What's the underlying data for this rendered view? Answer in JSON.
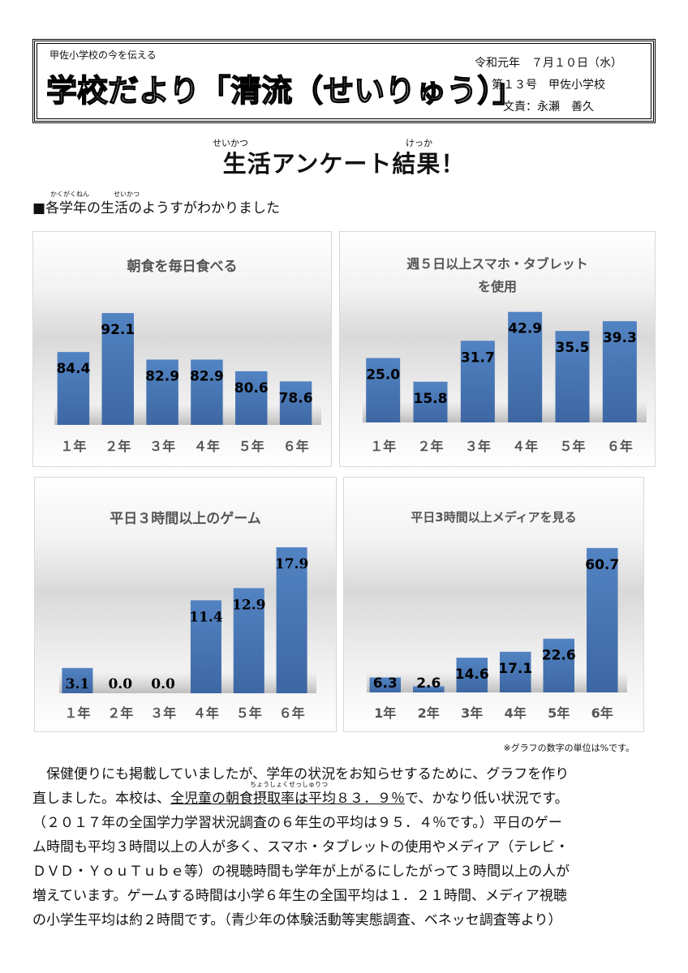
{
  "header": {
    "tagline": "甲佐小学校の今を伝える",
    "title": "学校だより「清流（せいりゅう）」",
    "date": "令和元年　７月１０日（水）",
    "issue": "第１３号　甲佐小学校",
    "author": "文責：永瀬　善久"
  },
  "main_title": {
    "text": "生活アンケート結果！",
    "ruby_seikatsu": "せいかつ",
    "ruby_kekka": "けっか"
  },
  "subhead": {
    "text": "■各学年の生活のようすがわかりました",
    "ruby_kakugakunen": "かくがくねん",
    "ruby_seikatsu": "せいかつ"
  },
  "chart_data": [
    {
      "type": "bar",
      "title": "朝食を毎日食べる",
      "categories": [
        "１年",
        "２年",
        "３年",
        "４年",
        "５年",
        "６年"
      ],
      "values": [
        84.4,
        92.1,
        82.9,
        82.9,
        80.6,
        78.6
      ],
      "labels": [
        "84.4",
        "92.1",
        "82.9",
        "82.9",
        "80.6",
        "78.6"
      ],
      "ylim": [
        70,
        95
      ],
      "bar_color": "#4a76b4",
      "grid": false
    },
    {
      "type": "bar",
      "title": "週５日以上スマホ・タブレット",
      "title_line2": "を使用",
      "categories": [
        "１年",
        "２年",
        "３年",
        "４年",
        "５年",
        "６年"
      ],
      "values": [
        25.0,
        15.8,
        31.7,
        42.9,
        35.5,
        39.3
      ],
      "labels": [
        "25.0",
        "15.8",
        "31.7",
        "42.9",
        "35.5",
        "39.3"
      ],
      "ylim": [
        0,
        45
      ],
      "bar_color": "#4a76b4",
      "grid": false
    },
    {
      "type": "bar",
      "title": "平日３時間以上のゲーム",
      "categories": [
        "１年",
        "２年",
        "３年",
        "４年",
        "５年",
        "６年"
      ],
      "values": [
        3.1,
        0.0,
        0.0,
        11.4,
        12.9,
        17.9
      ],
      "labels": [
        "3.1",
        "0.0",
        "0.0",
        "11.4",
        "12.9",
        "17.9"
      ],
      "ylim": [
        0,
        18
      ],
      "bar_color": "#4a76b4",
      "grid": false
    },
    {
      "type": "bar",
      "title": "平日3時間以上メディアを見る",
      "categories": [
        "1年",
        "2年",
        "3年",
        "4年",
        "5年",
        "6年"
      ],
      "values": [
        6.3,
        2.6,
        14.6,
        17.1,
        22.6,
        60.7
      ],
      "labels": [
        "6.3",
        "2.6",
        "14.6",
        "17.1",
        "22.6",
        "60.7"
      ],
      "ylim": [
        0,
        61
      ],
      "bar_color": "#4a76b4",
      "grid": false
    }
  ],
  "note": "※グラフの数字の単位は%です。",
  "body": {
    "line1": "　保健便りにも掲載していましたが、学年の状況をお知らせするために、グラフを作り",
    "line2_pre": "直しました。本校は、",
    "line2_ul": "全児童の朝食摂取率は平均８３．９％",
    "line2_post": "で、かなり低い状況です。",
    "line2_ruby": "ちょうしょくせっしゅりつ",
    "line3": "（２０１７年の全国学力学習状況調査の６年生の平均は９５．４％です。）平日のゲー",
    "line4": "ム時間も平均３時間以上の人が多く、スマホ・タブレットの使用やメディア（テレビ・",
    "line5": "ＤＶＤ・ＹｏｕＴｕｂｅ等）の視聴時間も学年が上がるにしたがって３時間以上の人が",
    "line6": "増えています。ゲームする時間は小学６年生の全国平均は１．２１時間、メディア視聴",
    "line7": "の小学生平均は約２時間です。（青少年の体験活動等実態調査、ベネッセ調査等より）"
  }
}
